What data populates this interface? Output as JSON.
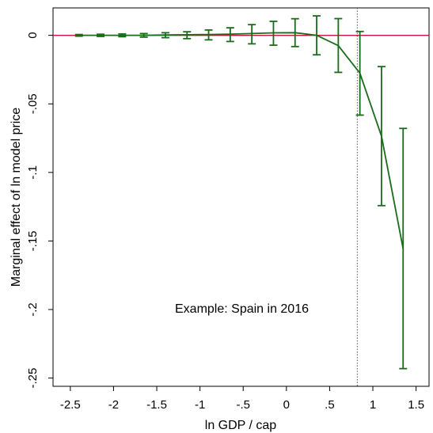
{
  "chart_data": {
    "type": "line",
    "xlabel": "ln GDP / cap",
    "ylabel": "Marginal effect of ln model price",
    "xlim": [
      -2.7,
      1.65
    ],
    "ylim": [
      -0.256,
      0.02
    ],
    "x_ticks": [
      -2.5,
      -2,
      -1.5,
      -1,
      -0.5,
      0,
      0.5,
      1,
      1.5
    ],
    "x_tick_labels": [
      "-2.5",
      "-2",
      "-1.5",
      "-1",
      "-.5",
      "0",
      ".5",
      "1",
      "1.5"
    ],
    "y_ticks": [
      0,
      -0.05,
      -0.1,
      -0.15,
      -0.2,
      -0.25
    ],
    "y_tick_labels": [
      "0",
      "-.05",
      "-.1",
      "-.15",
      "-.2",
      "-.25"
    ],
    "reference_line_y": 0,
    "reference_line_x": 0.82,
    "annotation": "Example: Spain in 2016",
    "grid": false,
    "colors": {
      "series": "#1a6b1a",
      "reference": "#c8103e",
      "vline": "#555555"
    },
    "series": [
      {
        "x": [
          -2.4,
          -2.15,
          -1.9,
          -1.65,
          -1.4,
          -1.15,
          -0.9,
          -0.65,
          -0.4,
          -0.15,
          0.1,
          0.35,
          0.6,
          0.85,
          1.1,
          1.35
        ],
        "y": [
          0,
          0,
          0,
          0,
          0.0003,
          0.0004,
          0.0006,
          0.0009,
          0.0013,
          0.0018,
          0.0019,
          0,
          -0.0075,
          -0.0275,
          -0.0735,
          -0.1555
        ],
        "ci_low": [
          -0.0006,
          -0.0008,
          -0.001,
          -0.0013,
          -0.0017,
          -0.0024,
          -0.0033,
          -0.0045,
          -0.0062,
          -0.0072,
          -0.0082,
          -0.0142,
          -0.027,
          -0.0582,
          -0.1242,
          -0.2431
        ],
        "ci_high": [
          0.0006,
          0.0008,
          0.001,
          0.0013,
          0.0019,
          0.0026,
          0.0039,
          0.0055,
          0.0078,
          0.0102,
          0.0121,
          0.0142,
          0.0122,
          0.0028,
          -0.0228,
          -0.0679
        ]
      }
    ]
  }
}
